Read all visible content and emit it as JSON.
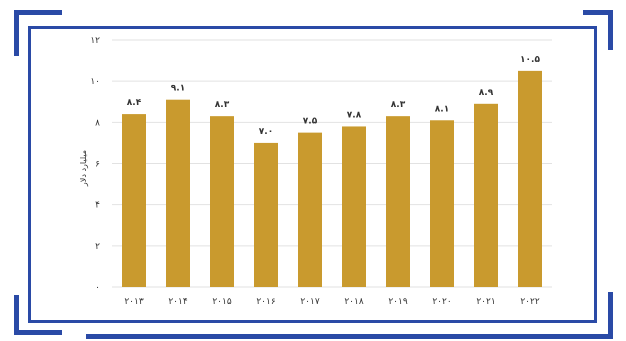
{
  "colors": {
    "bar": "#c99a2e",
    "frame": "#2a4aa6",
    "grid": "#e2e2e2"
  },
  "chart_data": {
    "type": "bar",
    "categories": [
      "۲۰۱۳",
      "۲۰۱۴",
      "۲۰۱۵",
      "۲۰۱۶",
      "۲۰۱۷",
      "۲۰۱۸",
      "۲۰۱۹",
      "۲۰۲۰",
      "۲۰۲۱",
      "۲۰۲۲"
    ],
    "values": [
      8.4,
      9.1,
      8.3,
      7.0,
      7.5,
      7.8,
      8.3,
      8.1,
      8.9,
      10.5
    ],
    "value_labels": [
      "۸.۴",
      "۹.۱",
      "۸.۳",
      "۷.۰",
      "۷.۵",
      "۷.۸",
      "۸.۳",
      "۸.۱",
      "۸.۹",
      "۱۰.۵"
    ],
    "yticks": [
      0,
      2,
      4,
      6,
      8,
      10,
      12
    ],
    "ytick_labels": [
      "۰",
      "۲",
      "۴",
      "۶",
      "۸",
      "۱۰",
      "۱۲"
    ],
    "ylim": [
      0,
      12
    ],
    "ylabel": "میلیارد دلار",
    "grid": true
  }
}
